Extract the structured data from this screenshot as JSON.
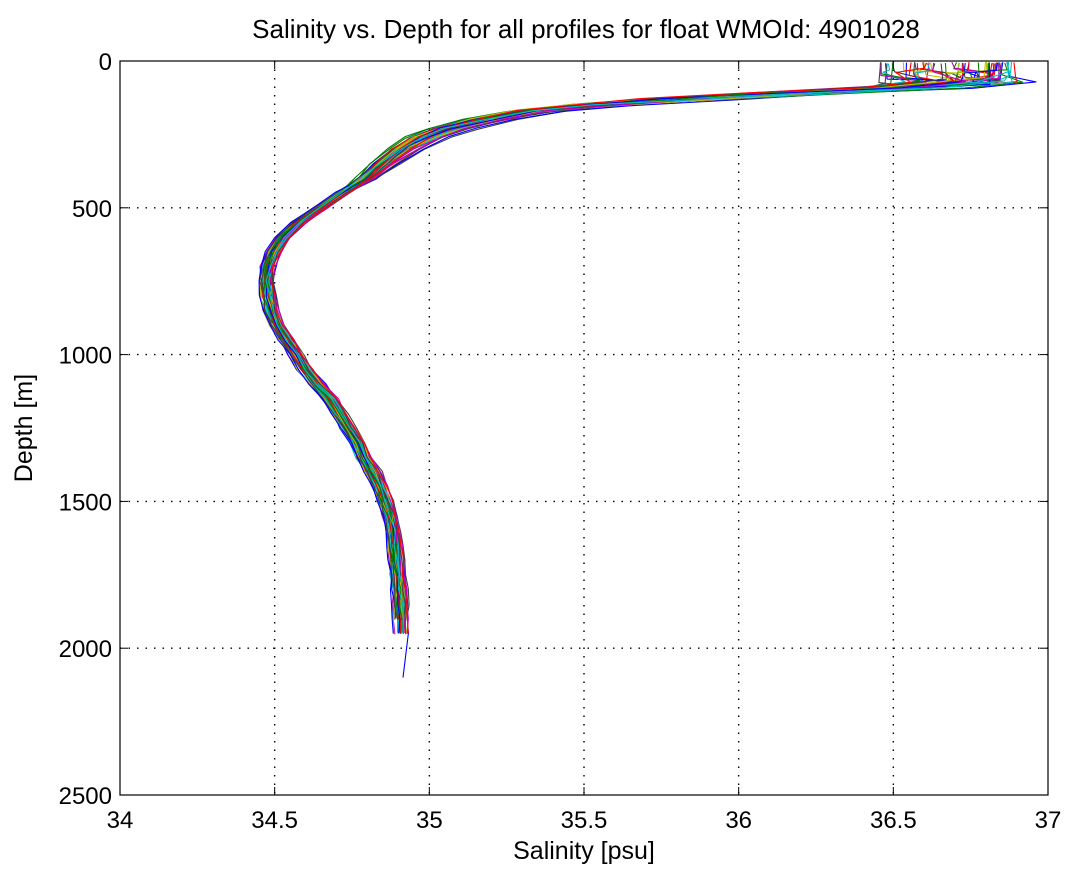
{
  "chart_data": {
    "type": "line",
    "title": "Salinity vs. Depth for all profiles for float WMOId: 4901028",
    "xlabel": "Salinity [psu]",
    "ylabel": "Depth [m]",
    "xlim": [
      34,
      37
    ],
    "ylim": [
      0,
      2500
    ],
    "y_reversed": true,
    "grid": true,
    "x_ticks": [
      "34",
      "34.5",
      "35",
      "35.5",
      "36",
      "36.5",
      "37"
    ],
    "y_ticks": [
      "0",
      "500",
      "1000",
      "1500",
      "2000",
      "2500"
    ],
    "colors": [
      "#0000ff",
      "#008000",
      "#ff0000",
      "#00bfbf",
      "#bf00bf",
      "#bfbf00",
      "#404040"
    ],
    "mean_profile": {
      "depth": [
        5,
        40,
        70,
        90,
        110,
        130,
        150,
        170,
        200,
        230,
        260,
        300,
        350,
        400,
        450,
        500,
        550,
        600,
        650,
        700,
        750,
        800,
        850,
        900,
        950,
        1000,
        1050,
        1100,
        1150,
        1200,
        1250,
        1300,
        1350,
        1400,
        1450,
        1500,
        1550,
        1600,
        1650,
        1700,
        1750,
        1800,
        1850,
        1900,
        1950
      ],
      "salinity": [
        36.75,
        36.77,
        36.78,
        36.6,
        36.2,
        35.85,
        35.55,
        35.35,
        35.2,
        35.08,
        35.0,
        34.93,
        34.86,
        34.8,
        34.72,
        34.65,
        34.58,
        34.53,
        34.5,
        34.48,
        34.475,
        34.48,
        34.49,
        34.51,
        34.54,
        34.57,
        34.6,
        34.64,
        34.68,
        34.71,
        34.74,
        34.77,
        34.79,
        34.82,
        34.84,
        34.86,
        34.875,
        34.885,
        34.89,
        34.895,
        34.9,
        34.905,
        34.908,
        34.91,
        34.91
      ]
    },
    "profile_count": 60,
    "deep_profile_max_depth": 2100
  }
}
